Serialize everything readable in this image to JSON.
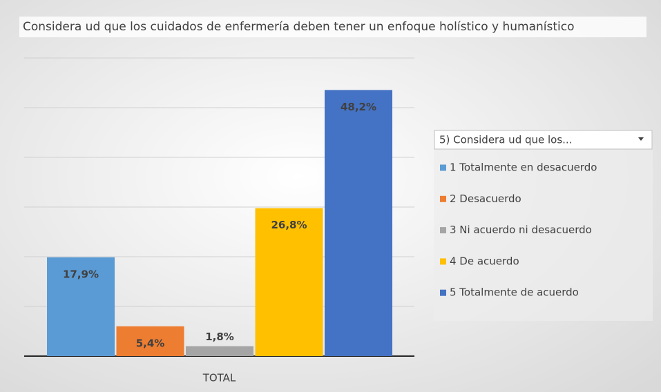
{
  "chart_data": {
    "type": "bar",
    "title": "Considera  ud que los cuidados de enfermería deben tener un enfoque holístico y humanístico",
    "legend_title": "5) Considera  ud que los...",
    "categories": [
      "TOTAL"
    ],
    "series": [
      {
        "name": "1 Totalmente en desacuerdo",
        "color": "#5b9bd5",
        "values": [
          17.9
        ],
        "value_labels": [
          "17,9%"
        ]
      },
      {
        "name": "2 Desacuerdo",
        "color": "#ed7d31",
        "values": [
          5.4
        ],
        "value_labels": [
          "5,4%"
        ]
      },
      {
        "name": "3 Ni acuerdo ni desacuerdo",
        "color": "#a5a5a5",
        "values": [
          1.8
        ],
        "value_labels": [
          "1,8%"
        ]
      },
      {
        "name": "4 De acuerdo",
        "color": "#ffc000",
        "values": [
          26.8
        ],
        "value_labels": [
          "26,8%"
        ]
      },
      {
        "name": "5 Totalmente de acuerdo",
        "color": "#4472c4",
        "values": [
          48.2
        ],
        "value_labels": [
          "48,2%"
        ]
      }
    ],
    "ylim": [
      0,
      54
    ],
    "yticks": [
      0,
      9,
      18,
      27,
      36,
      45,
      54
    ],
    "grid": true,
    "legend": "right"
  }
}
